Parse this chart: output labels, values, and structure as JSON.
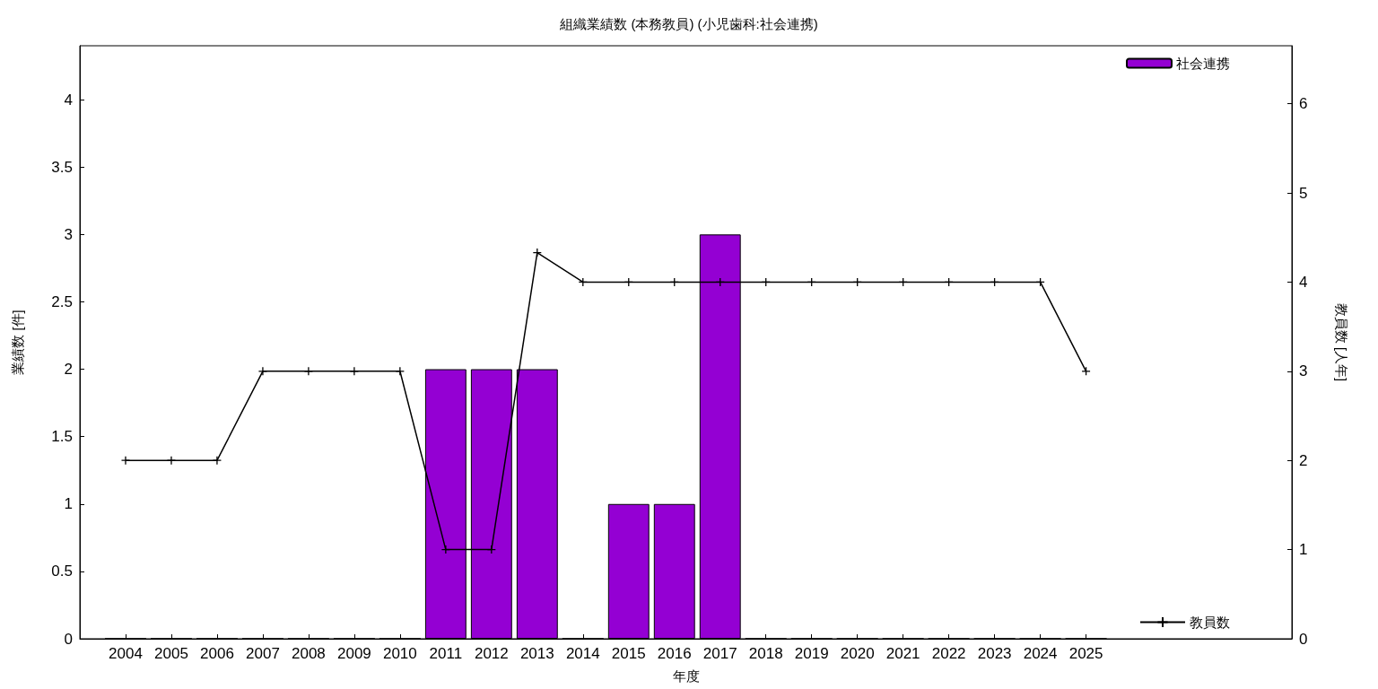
{
  "chart_data": {
    "type": "bar",
    "title": "組織業績数 (本務教員) (小児歯科:社会連携)",
    "xlabel": "年度",
    "ylabel": "業績数 [件]",
    "y2label": "教員数 [人年]",
    "x": [
      2004,
      2005,
      2006,
      2007,
      2008,
      2009,
      2010,
      2011,
      2012,
      2013,
      2014,
      2015,
      2016,
      2017,
      2018,
      2019,
      2020,
      2021,
      2022,
      2023,
      2024,
      2025
    ],
    "xlim": [
      2003,
      2029.5
    ],
    "xticks": [
      2004,
      2005,
      2006,
      2007,
      2008,
      2009,
      2010,
      2011,
      2012,
      2013,
      2014,
      2015,
      2016,
      2017,
      2018,
      2019,
      2020,
      2021,
      2022,
      2023,
      2024,
      2025
    ],
    "ylim": [
      0,
      4.4
    ],
    "yticks": [
      0,
      0.5,
      1,
      1.5,
      2,
      2.5,
      3,
      3.5,
      4
    ],
    "y2lim": [
      0,
      6.65
    ],
    "y2ticks": [
      0,
      1,
      2,
      3,
      4,
      5,
      6
    ],
    "series": [
      {
        "name": "社会連携",
        "color": "#9400d3",
        "values": [
          0,
          0,
          0,
          0,
          0,
          0,
          0,
          2,
          2,
          2,
          0,
          1,
          1,
          3,
          0,
          0,
          0,
          0,
          0,
          0,
          0,
          0
        ]
      },
      {
        "name": "教員数",
        "type": "line",
        "axis": "y2",
        "color": "#000000",
        "marker": "cross",
        "values": [
          2,
          2,
          2,
          3,
          3,
          3,
          3,
          1,
          1,
          4.33,
          4,
          4,
          4,
          4,
          4,
          4,
          4,
          4,
          4,
          4,
          4,
          3
        ]
      }
    ],
    "legend": "right",
    "grid": false
  }
}
